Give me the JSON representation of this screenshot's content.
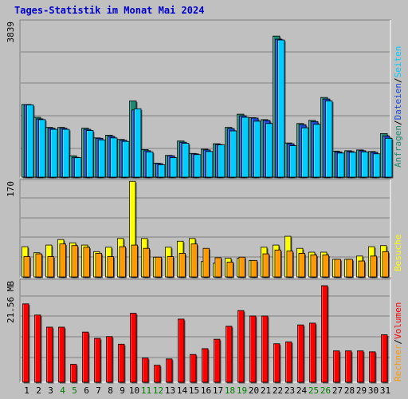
{
  "chart_data": {
    "type": "bar",
    "title": "Tages-Statistik im Monat Mai 2024",
    "days": [
      "1",
      "2",
      "3",
      "4",
      "5",
      "6",
      "7",
      "8",
      "9",
      "10",
      "11",
      "12",
      "13",
      "14",
      "15",
      "16",
      "17",
      "18",
      "19",
      "20",
      "21",
      "22",
      "23",
      "24",
      "25",
      "26",
      "27",
      "28",
      "29",
      "30",
      "31"
    ],
    "weekend_days": [
      "4",
      "5",
      "11",
      "12",
      "18",
      "19",
      "25",
      "26"
    ],
    "colors": {
      "anfragen": "#1e8a72",
      "dateien": "#1a4bd8",
      "seiten": "#00ccff",
      "besuche": "#ffff00",
      "rechner": "#ff9900",
      "volumen": "#ff0000",
      "weekday_tick": "#000000",
      "weekend_tick": "#008000",
      "plot_bg": "#c0c0c0",
      "gridline": "#808080"
    },
    "panels": [
      {
        "key": "top",
        "ymax_label": "3839",
        "ymax": 3839,
        "right_legend": [
          "Anfragen",
          "Dateien",
          "Seiten"
        ],
        "series": [
          {
            "name": "Anfragen",
            "color_key": "anfragen",
            "values": [
              1870,
              1540,
              1280,
              1280,
              550,
              1260,
              1010,
              1080,
              970,
              1960,
              710,
              360,
              560,
              930,
              610,
              720,
              860,
              1280,
              1620,
              1530,
              1480,
              3630,
              880,
              1380,
              1460,
              2050,
              670,
              680,
              700,
              660,
              1120
            ]
          },
          {
            "name": "Dateien",
            "color_key": "dateien",
            "values": [
              1870,
              1500,
              1260,
              1260,
              510,
              1230,
              1000,
              1050,
              950,
              1730,
              680,
              350,
              550,
              900,
              600,
              700,
              840,
              1250,
              1580,
              1520,
              1460,
              3550,
              860,
              1350,
              1430,
              2010,
              650,
              660,
              680,
              640,
              1060
            ]
          },
          {
            "name": "Seiten",
            "color_key": "seiten",
            "values": [
              1860,
              1480,
              1230,
              1230,
              500,
              1200,
              960,
              1010,
              920,
              1760,
              650,
              320,
              500,
              870,
              580,
              660,
              830,
              1190,
              1540,
              1440,
              1380,
              3530,
              810,
              1270,
              1360,
              1960,
              620,
              640,
              650,
              600,
              1000
            ]
          }
        ]
      },
      {
        "key": "middle",
        "ymax_label": "170",
        "ymax": 170,
        "right_legend": [
          "Besuche"
        ],
        "series": [
          {
            "name": "Besuche",
            "color_key": "besuche",
            "values": [
              55,
              44,
              58,
              68,
              62,
              58,
              46,
              54,
              70,
              174,
              70,
              36,
              54,
              65,
              70,
              28,
              25,
              34,
              34,
              30,
              54,
              58,
              74,
              52,
              45,
              45,
              32,
              32,
              38,
              55,
              57
            ]
          },
          {
            "name": "Rechner",
            "color_key": "rechner",
            "values": [
              37,
              42,
              37,
              60,
              57,
              54,
              43,
              37,
              55,
              58,
              52,
              36,
              37,
              43,
              60,
              52,
              35,
              27,
              36,
              30,
              42,
              49,
              47,
              43,
              40,
              40,
              32,
              32,
              29,
              38,
              46
            ]
          }
        ]
      },
      {
        "key": "bottom",
        "ymax_label": "21.56 MB",
        "ymax": 21.56,
        "right_legend": [
          "Rechner",
          "Volumen"
        ],
        "series": [
          {
            "name": "Volumen",
            "color_key": "volumen",
            "values": [
              17.5,
              15.0,
              12.3,
              12.3,
              4.0,
              11.2,
              9.8,
              10.2,
              8.5,
              15.4,
              5.4,
              3.8,
              5.2,
              14.1,
              6.2,
              7.5,
              9.6,
              12.5,
              16.0,
              14.8,
              14.8,
              8.6,
              9.0,
              12.8,
              13.2,
              21.56,
              7.0,
              7.0,
              7.0,
              6.8,
              10.6
            ]
          }
        ]
      }
    ]
  }
}
